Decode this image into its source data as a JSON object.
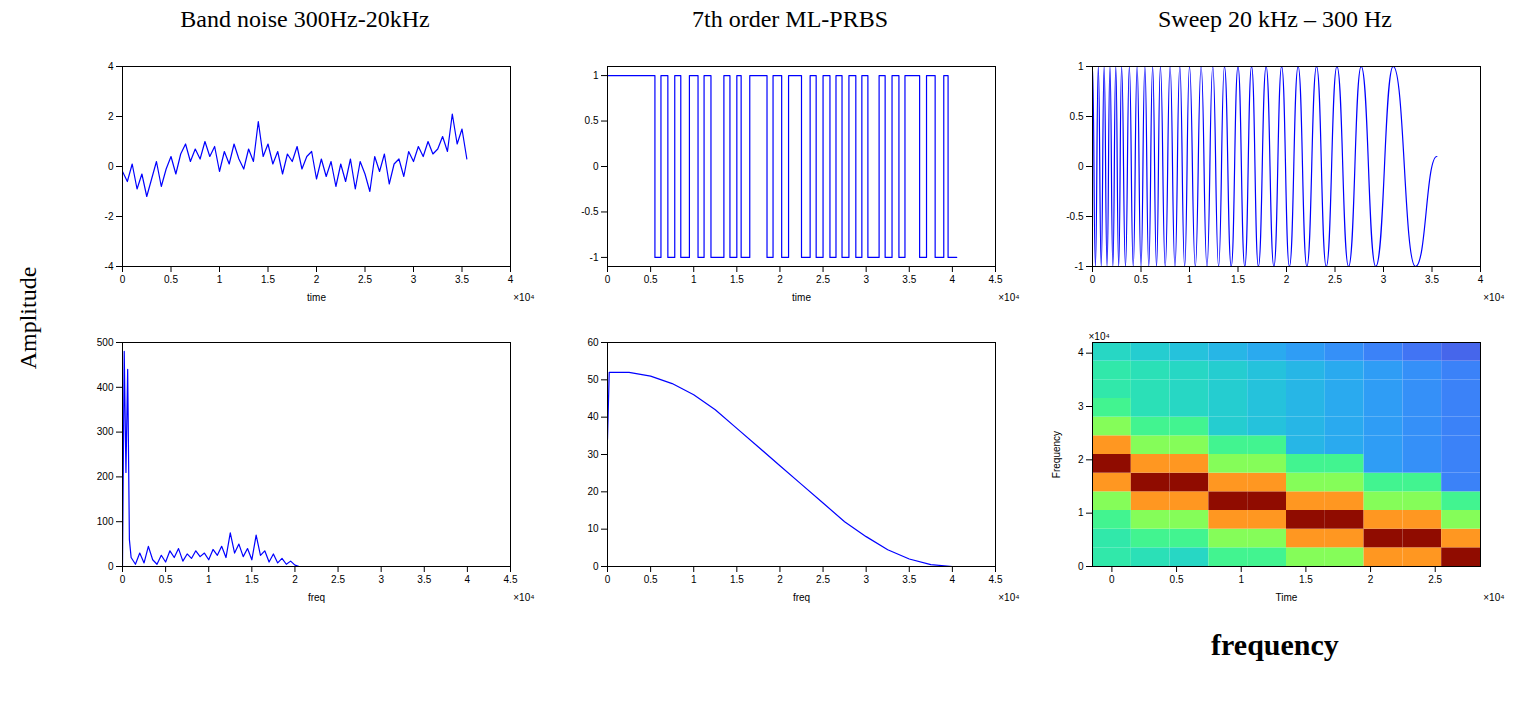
{
  "left_label": "Amplitude",
  "bottom_label": "frequency",
  "chart_data": [
    {
      "type": "line",
      "title": "Band noise 300Hz-20kHz",
      "x_label": "time",
      "x_multiplier": "×10⁴",
      "color": "#0000ff",
      "x": [
        0,
        0.05,
        0.1,
        0.15,
        0.2,
        0.25,
        0.3,
        0.35,
        0.4,
        0.45,
        0.5,
        0.55,
        0.6,
        0.65,
        0.7,
        0.75,
        0.8,
        0.85,
        0.9,
        0.95,
        1,
        1.05,
        1.1,
        1.15,
        1.2,
        1.25,
        1.3,
        1.35,
        1.4,
        1.45,
        1.5,
        1.55,
        1.6,
        1.65,
        1.7,
        1.75,
        1.8,
        1.85,
        1.9,
        1.95,
        2,
        2.05,
        2.1,
        2.15,
        2.2,
        2.25,
        2.3,
        2.35,
        2.4,
        2.45,
        2.5,
        2.55,
        2.6,
        2.65,
        2.7,
        2.75,
        2.8,
        2.85,
        2.9,
        2.95,
        3,
        3.05,
        3.1,
        3.15,
        3.2,
        3.25,
        3.3,
        3.35,
        3.4,
        3.45,
        3.5,
        3.55
      ],
      "values": [
        -0.2,
        -0.6,
        0.1,
        -0.9,
        -0.3,
        -1.2,
        -0.5,
        0.2,
        -0.8,
        -0.1,
        0.4,
        -0.3,
        0.5,
        0.9,
        0.2,
        0.7,
        0.3,
        1.0,
        0.4,
        0.8,
        -0.2,
        0.6,
        0.1,
        0.9,
        0.3,
        -0.1,
        0.7,
        0.2,
        1.8,
        0.4,
        0.9,
        0.1,
        0.6,
        -0.3,
        0.5,
        0.2,
        0.8,
        -0.1,
        0.4,
        0.6,
        -0.5,
        0.3,
        -0.4,
        0.2,
        -0.8,
        0.1,
        -0.6,
        0.3,
        -0.9,
        0.2,
        -0.3,
        -1.0,
        0.4,
        -0.2,
        0.5,
        -0.7,
        0.1,
        0.3,
        -0.4,
        0.6,
        0.2,
        0.8,
        0.4,
        1.0,
        0.5,
        0.7,
        1.2,
        0.6,
        2.1,
        0.9,
        1.5,
        0.3
      ],
      "xlim": [
        0,
        4
      ],
      "xticks": [
        0,
        0.5,
        1,
        1.5,
        2,
        2.5,
        3,
        3.5,
        4
      ],
      "ylim": [
        -4,
        4
      ],
      "yticks": [
        -4,
        -2,
        0,
        2,
        4
      ]
    },
    {
      "type": "line",
      "title": "7th order ML-PRBS",
      "x_label": "time",
      "x_multiplier": "×10⁴",
      "color": "#0000ff",
      "line_style": "step",
      "x": [
        0,
        0.55,
        0.62,
        0.7,
        0.78,
        0.85,
        0.95,
        1.05,
        1.12,
        1.2,
        1.35,
        1.42,
        1.5,
        1.55,
        1.65,
        1.85,
        1.92,
        2.02,
        2.1,
        2.25,
        2.35,
        2.42,
        2.5,
        2.58,
        2.65,
        2.72,
        2.8,
        2.88,
        2.95,
        3.02,
        3.15,
        3.22,
        3.3,
        3.38,
        3.45,
        3.62,
        3.7,
        3.8,
        3.9,
        3.95,
        4.05
      ],
      "values": [
        1,
        -1,
        1,
        -1,
        1,
        -1,
        1,
        -1,
        1,
        -1,
        1,
        -1,
        1,
        -1,
        1,
        -1,
        1,
        -1,
        1,
        -1,
        1,
        -1,
        1,
        -1,
        1,
        -1,
        1,
        -1,
        1,
        -1,
        1,
        -1,
        1,
        -1,
        1,
        -1,
        1,
        -1,
        1,
        -1,
        -1
      ],
      "xlim": [
        0,
        4.5
      ],
      "xticks": [
        0,
        0.5,
        1,
        1.5,
        2,
        2.5,
        3,
        3.5,
        4,
        4.5
      ],
      "ylim": [
        -1.1,
        1.1
      ],
      "yticks": [
        -1,
        -0.5,
        0,
        0.5,
        1
      ]
    },
    {
      "type": "line",
      "title": "Sweep 20 kHz – 300 Hz",
      "x_multiplier": "×10⁴",
      "color": "#0000ff",
      "line_style": "smooth",
      "x": [
        0,
        0.03,
        0.06,
        0.09,
        0.12,
        0.15,
        0.18,
        0.21,
        0.24,
        0.27,
        0.3,
        0.34,
        0.38,
        0.42,
        0.46,
        0.5,
        0.54,
        0.58,
        0.62,
        0.66,
        0.7,
        0.75,
        0.8,
        0.85,
        0.9,
        0.95,
        1.0,
        1.06,
        1.12,
        1.18,
        1.24,
        1.3,
        1.36,
        1.43,
        1.5,
        1.57,
        1.64,
        1.71,
        1.79,
        1.87,
        1.95,
        2.03,
        2.12,
        2.21,
        2.31,
        2.41,
        2.52,
        2.64,
        2.77,
        2.92,
        3.1,
        3.33,
        3.55
      ],
      "values": [
        1,
        -1,
        1,
        -1,
        1,
        -1,
        1,
        -1,
        1,
        -1,
        1,
        -1,
        1,
        -1,
        1,
        -1,
        1,
        -1,
        1,
        -1,
        1,
        -1,
        1,
        -1,
        1,
        -1,
        1,
        -1,
        1,
        -1,
        1,
        -1,
        1,
        -1,
        1,
        -1,
        1,
        -1,
        1,
        -1,
        1,
        -1,
        1,
        -1,
        1,
        -1,
        1,
        -1,
        1,
        -1,
        1,
        -1,
        0.1
      ],
      "xlim": [
        0,
        4
      ],
      "xticks": [
        0,
        0.5,
        1,
        1.5,
        2,
        2.5,
        3,
        3.5,
        4
      ],
      "ylim": [
        -1,
        1
      ],
      "yticks": [
        -1,
        -0.5,
        0,
        0.5,
        1
      ]
    },
    {
      "type": "line",
      "x_label": "freq",
      "x_multiplier": "×10⁴",
      "color": "#0000ff",
      "x": [
        0,
        0.02,
        0.04,
        0.06,
        0.08,
        0.1,
        0.15,
        0.2,
        0.25,
        0.3,
        0.35,
        0.4,
        0.45,
        0.5,
        0.55,
        0.6,
        0.65,
        0.7,
        0.75,
        0.8,
        0.85,
        0.9,
        0.95,
        1.0,
        1.05,
        1.1,
        1.15,
        1.2,
        1.25,
        1.3,
        1.35,
        1.4,
        1.45,
        1.5,
        1.55,
        1.6,
        1.65,
        1.7,
        1.75,
        1.8,
        1.85,
        1.9,
        1.95,
        2.0,
        2.05,
        4.5
      ],
      "values": [
        0,
        480,
        210,
        440,
        60,
        20,
        5,
        30,
        8,
        45,
        15,
        5,
        25,
        10,
        35,
        20,
        40,
        12,
        28,
        18,
        35,
        22,
        30,
        15,
        38,
        25,
        45,
        20,
        75,
        30,
        50,
        22,
        40,
        15,
        70,
        25,
        35,
        10,
        28,
        8,
        18,
        5,
        12,
        3,
        0,
        0
      ],
      "xlim": [
        0,
        4.5
      ],
      "xticks": [
        0,
        0.5,
        1,
        1.5,
        2,
        2.5,
        3,
        3.5,
        4,
        4.5
      ],
      "ylim": [
        0,
        500
      ],
      "yticks": [
        0,
        100,
        200,
        300,
        400,
        500
      ]
    },
    {
      "type": "line",
      "x_label": "freq",
      "x_multiplier": "×10⁴",
      "color": "#0000ff",
      "x": [
        0,
        0.02,
        0.25,
        0.5,
        0.75,
        1,
        1.25,
        1.5,
        1.75,
        2,
        2.25,
        2.5,
        2.75,
        3,
        3.25,
        3.5,
        3.75,
        4.0
      ],
      "values": [
        34,
        52,
        52,
        51,
        49,
        46,
        42,
        37,
        32,
        27,
        22,
        17,
        12,
        8,
        4.5,
        2,
        0.5,
        0
      ],
      "xlim": [
        0,
        4.5
      ],
      "xticks": [
        0,
        0.5,
        1,
        1.5,
        2,
        2.5,
        3,
        3.5,
        4,
        4.5
      ],
      "ylim": [
        0,
        60
      ],
      "yticks": [
        0,
        10,
        20,
        30,
        40,
        50,
        60
      ]
    },
    {
      "type": "heatmap",
      "x_label": "Time",
      "y_label": "Frequency",
      "x_multiplier": "×10⁴",
      "y_multiplier": "×10⁴",
      "color": "turbo",
      "color_range": [
        0,
        1
      ],
      "x_edges": [
        -0.15,
        0.15,
        0.45,
        0.75,
        1.05,
        1.35,
        1.65,
        1.95,
        2.25,
        2.55,
        2.85
      ],
      "y_edges": [
        0,
        0.35,
        0.7,
        1.05,
        1.4,
        1.75,
        2.1,
        2.45,
        2.8,
        3.15,
        3.5,
        3.85,
        4.2
      ],
      "cells": [
        [
          0.34,
          0.32,
          0.3,
          0.38,
          0.38,
          0.48,
          0.48,
          0.72,
          0.72,
          1.0
        ],
        [
          0.34,
          0.38,
          0.38,
          0.48,
          0.48,
          0.72,
          0.72,
          1.0,
          1.0,
          0.72
        ],
        [
          0.38,
          0.48,
          0.48,
          0.72,
          0.72,
          1.0,
          1.0,
          0.72,
          0.72,
          0.48
        ],
        [
          0.48,
          0.72,
          0.72,
          1.0,
          1.0,
          0.72,
          0.72,
          0.48,
          0.48,
          0.38
        ],
        [
          0.72,
          1.0,
          1.0,
          0.72,
          0.72,
          0.48,
          0.48,
          0.38,
          0.38,
          0.16
        ],
        [
          1.0,
          0.72,
          0.72,
          0.48,
          0.48,
          0.38,
          0.38,
          0.2,
          0.18,
          0.16
        ],
        [
          0.72,
          0.48,
          0.48,
          0.38,
          0.38,
          0.24,
          0.22,
          0.2,
          0.18,
          0.16
        ],
        [
          0.48,
          0.38,
          0.38,
          0.28,
          0.26,
          0.24,
          0.22,
          0.2,
          0.18,
          0.16
        ],
        [
          0.38,
          0.32,
          0.3,
          0.28,
          0.26,
          0.24,
          0.22,
          0.2,
          0.18,
          0.16
        ],
        [
          0.34,
          0.32,
          0.3,
          0.28,
          0.26,
          0.24,
          0.22,
          0.2,
          0.18,
          0.16
        ],
        [
          0.34,
          0.32,
          0.3,
          0.28,
          0.26,
          0.24,
          0.22,
          0.2,
          0.18,
          0.16
        ],
        [
          0.3,
          0.28,
          0.26,
          0.24,
          0.22,
          0.2,
          0.18,
          0.16,
          0.14,
          0.12
        ]
      ],
      "xlim": [
        -0.15,
        2.85
      ],
      "xticks": [
        0,
        0.5,
        1,
        1.5,
        2,
        2.5
      ],
      "ylim": [
        0,
        4.2
      ],
      "yticks": [
        0,
        1,
        2,
        3,
        4
      ]
    }
  ]
}
